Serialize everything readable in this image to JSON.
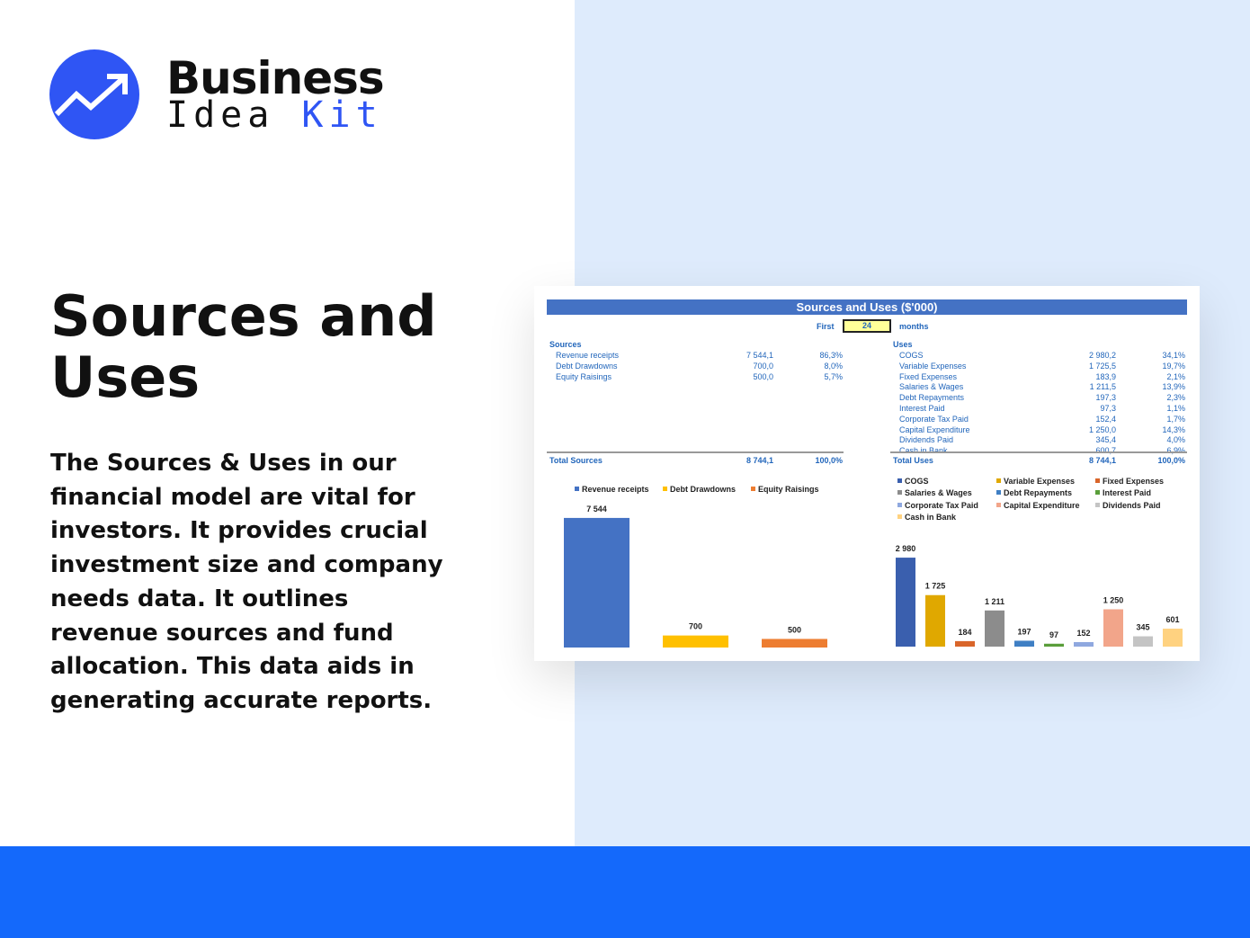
{
  "brand": {
    "line1": "Business",
    "line2a": "Idea",
    "line2b": "Kit",
    "color": "#2f55f4"
  },
  "headline": "Sources and Uses",
  "description": "The Sources & Uses in our financial model are vital for investors. It provides crucial investment size and company needs data. It outlines revenue sources and fund allocation. This data aids in generating accurate reports.",
  "sheet": {
    "title": "Sources and Uses ($'000)",
    "first_label": "First",
    "months_value": "24",
    "months_label": "months",
    "sources": {
      "heading": "Sources",
      "rows": [
        {
          "label": "Revenue receipts",
          "value": "7 544,1",
          "pct": "86,3%"
        },
        {
          "label": "Debt Drawdowns",
          "value": "700,0",
          "pct": "8,0%"
        },
        {
          "label": "Equity Raisings",
          "value": "500,0",
          "pct": "5,7%"
        }
      ],
      "total": {
        "label": "Total Sources",
        "value": "8 744,1",
        "pct": "100,0%"
      }
    },
    "uses": {
      "heading": "Uses",
      "rows": [
        {
          "label": "COGS",
          "value": "2 980,2",
          "pct": "34,1%"
        },
        {
          "label": "Variable Expenses",
          "value": "1 725,5",
          "pct": "19,7%"
        },
        {
          "label": "Fixed Expenses",
          "value": "183,9",
          "pct": "2,1%"
        },
        {
          "label": "Salaries & Wages",
          "value": "1 211,5",
          "pct": "13,9%"
        },
        {
          "label": "Debt Repayments",
          "value": "197,3",
          "pct": "2,3%"
        },
        {
          "label": "Interest Paid",
          "value": "97,3",
          "pct": "1,1%"
        },
        {
          "label": "Corporate Tax Paid",
          "value": "152,4",
          "pct": "1,7%"
        },
        {
          "label": "Capital Expenditure",
          "value": "1 250,0",
          "pct": "14,3%"
        },
        {
          "label": "Dividends Paid",
          "value": "345,4",
          "pct": "4,0%"
        },
        {
          "label": "Cash in Bank",
          "value": "600,7",
          "pct": "6,9%"
        }
      ],
      "total": {
        "label": "Total Uses",
        "value": "8 744,1",
        "pct": "100,0%"
      }
    }
  },
  "chart_data": [
    {
      "type": "bar",
      "categories": [
        "Revenue receipts",
        "Debt Drawdowns",
        "Equity Raisings"
      ],
      "values": [
        7544,
        700,
        500
      ],
      "data_labels": [
        "7 544",
        "700",
        "500"
      ],
      "colors": [
        "#4472c4",
        "#ffc000",
        "#ed7d31"
      ],
      "legend": "top",
      "grid": false
    },
    {
      "type": "bar",
      "categories": [
        "COGS",
        "Variable Expenses",
        "Fixed Expenses",
        "Salaries & Wages",
        "Debt Repayments",
        "Interest Paid",
        "Corporate Tax Paid",
        "Capital Expenditure",
        "Dividends Paid",
        "Cash in Bank"
      ],
      "values": [
        2980,
        1725,
        184,
        1211,
        197,
        97,
        152,
        1250,
        345,
        601
      ],
      "data_labels": [
        "2 980",
        "1 725",
        "184",
        "1 211",
        "197",
        "97",
        "152",
        "1 250",
        "345",
        "601"
      ],
      "colors": [
        "#3a5fae",
        "#e0a800",
        "#d9652a",
        "#8c8c8c",
        "#3f7fc4",
        "#5a9e3a",
        "#8fa8df",
        "#f2a58a",
        "#c4c4c4",
        "#ffd280"
      ],
      "legend": "top",
      "grid": false
    }
  ]
}
